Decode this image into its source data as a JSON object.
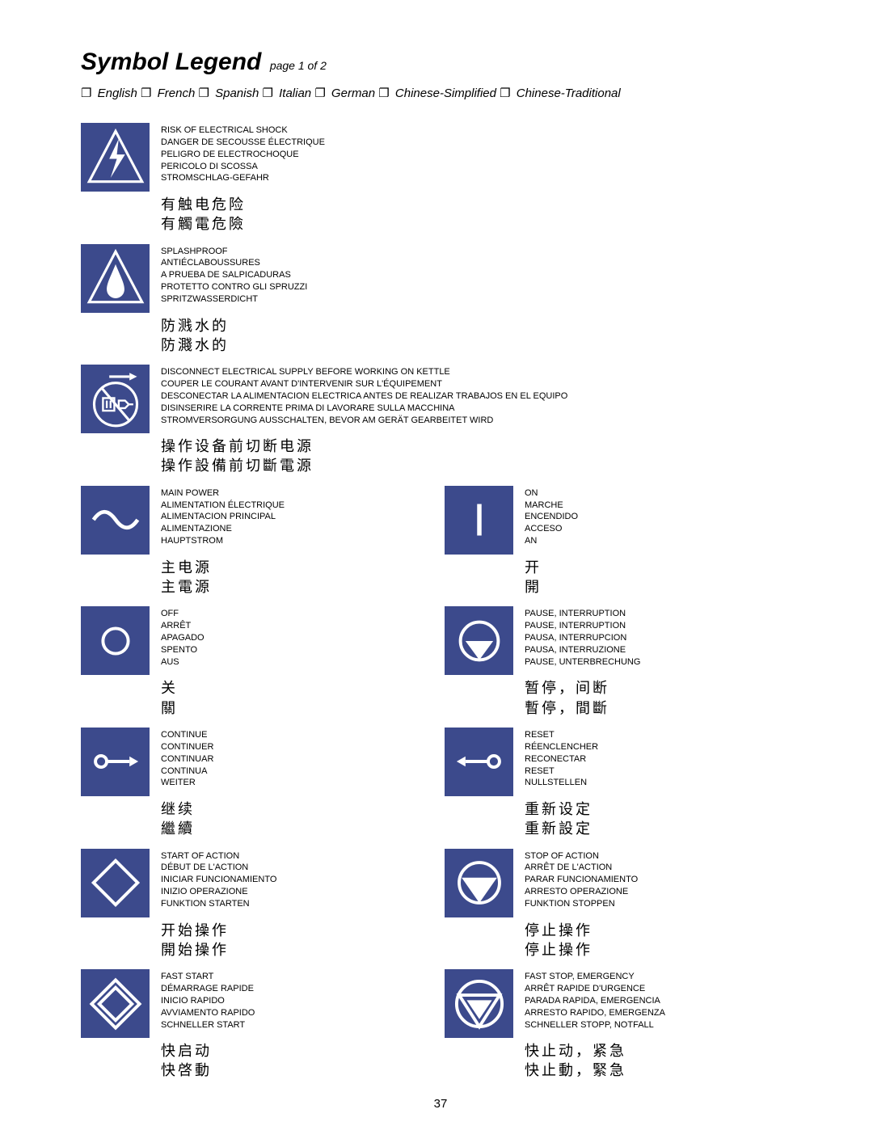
{
  "header": {
    "title": "Symbol Legend",
    "subtitle": "page 1 of 2",
    "languages": [
      "English",
      "French",
      "Spanish",
      "Italian",
      "German",
      "Chinese-Simplified",
      "Chinese-Traditional"
    ]
  },
  "page_number": "37",
  "symbols": [
    {
      "icon": "shock",
      "full": true,
      "langs": [
        "RISK OF ELECTRICAL SHOCK",
        "DANGER DE SECOUSSE ÉLECTRIQUE",
        "PELIGRO DE ELECTROCHOQUE",
        "PERICOLO DI SCOSSA",
        "STROMSCHLAG-GEFAHR"
      ],
      "cjk": [
        "有触电危险",
        "有觸電危險"
      ]
    },
    {
      "icon": "splash",
      "full": true,
      "langs": [
        "SPLASHPROOF",
        "ANTIÉCLABOUSSURES",
        "A PRUEBA DE SALPICADURAS",
        "PROTETTO CONTRO GLI SPRUZZI",
        "SPRITZWASSERDICHT"
      ],
      "cjk": [
        "防溅水的",
        "防濺水的"
      ]
    },
    {
      "icon": "disconnect",
      "full": true,
      "langs": [
        "DISCONNECT ELECTRICAL SUPPLY BEFORE WORKING ON KETTLE",
        "COUPER LE COURANT AVANT D'INTERVENIR SUR L'ÉQUIPEMENT",
        "DESCONECTAR LA ALIMENTACION ELECTRICA ANTES DE REALIZAR TRABAJOS EN EL EQUIPO",
        "DISINSERIRE LA CORRENTE PRIMA DI LAVORARE SULLA MACCHINA",
        "STROMVERSORGUNG AUSSCHALTEN, BEVOR AM GERÄT GEARBEITET WIRD"
      ],
      "cjk": [
        "操作设备前切断电源",
        "操作設備前切斷電源"
      ]
    }
  ],
  "pairs": [
    [
      {
        "icon": "mainpower",
        "langs": [
          "MAIN POWER",
          "ALIMENTATION ÉLECTRIQUE",
          "ALIMENTACION PRINCIPAL",
          "ALIMENTAZIONE",
          "HAUPTSTROM"
        ],
        "cjk": [
          "主电源",
          "主電源"
        ]
      },
      {
        "icon": "on",
        "langs": [
          "ON",
          "MARCHE",
          "ENCENDIDO",
          "ACCESO",
          "AN"
        ],
        "cjk": [
          "开",
          "開"
        ]
      }
    ],
    [
      {
        "icon": "off",
        "langs": [
          "OFF",
          "ARRÊT",
          "APAGADO",
          "SPENTO",
          "AUS"
        ],
        "cjk": [
          "关",
          "關"
        ]
      },
      {
        "icon": "pause",
        "langs": [
          "PAUSE, INTERRUPTION",
          "PAUSE, INTERRUPTION",
          "PAUSA, INTERRUPCION",
          "PAUSA, INTERRUZIONE",
          "PAUSE, UNTERBRECHUNG"
        ],
        "cjk": [
          "暂停，间断",
          "暫停，間斷"
        ]
      }
    ],
    [
      {
        "icon": "continue",
        "langs": [
          "CONTINUE",
          "CONTINUER",
          "CONTINUAR",
          "CONTINUA",
          "WEITER"
        ],
        "cjk": [
          "继续",
          "繼續"
        ]
      },
      {
        "icon": "reset",
        "langs": [
          "RESET",
          "RÉENCLENCHER",
          "RECONECTAR",
          "RESET",
          "NULLSTELLEN"
        ],
        "cjk": [
          "重新设定",
          "重新設定"
        ]
      }
    ],
    [
      {
        "icon": "start",
        "langs": [
          "START OF ACTION",
          "DÉBUT DE L'ACTION",
          "INICIAR FUNCIONAMIENTO",
          "INIZIO OPERAZIONE",
          "FUNKTION STARTEN"
        ],
        "cjk": [
          "开始操作",
          "開始操作"
        ]
      },
      {
        "icon": "stop",
        "langs": [
          "STOP OF ACTION",
          "ARRÊT DE L'ACTION",
          "PARAR FUNCIONAMIENTO",
          "ARRESTO OPERAZIONE",
          "FUNKTION STOPPEN"
        ],
        "cjk": [
          "停止操作",
          "停止操作"
        ]
      }
    ],
    [
      {
        "icon": "faststart",
        "langs": [
          "FAST START",
          "DÉMARRAGE RAPIDE",
          "INICIO RAPIDO",
          "AVVIAMENTO RAPIDO",
          "SCHNELLER START"
        ],
        "cjk": [
          "快启动",
          "快啓動"
        ]
      },
      {
        "icon": "faststop",
        "langs": [
          "FAST STOP, EMERGENCY",
          "ARRÊT RAPIDE D'URGENCE",
          "PARADA RAPIDA, EMERGENCIA",
          "ARRESTO RAPIDO, EMERGENZA",
          "SCHNELLER STOPP, NOTFALL"
        ],
        "cjk": [
          "快止动，紧急",
          "快止動，緊急"
        ]
      }
    ]
  ]
}
